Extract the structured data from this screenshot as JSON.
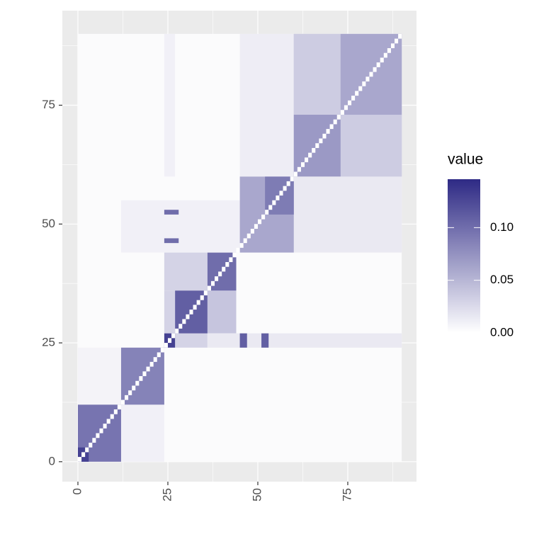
{
  "chart_data": {
    "type": "heatmap",
    "xlim": [
      -4.33,
      94.1
    ],
    "ylim": [
      -4.2,
      94.9
    ],
    "xticks": [
      0,
      25,
      50,
      75
    ],
    "yticks": [
      0,
      25,
      50,
      75
    ],
    "grid": true,
    "background": "#EBEBEB",
    "low_color": "#FFFFFF",
    "high_color": "#2E2A85",
    "color_lim": [
      0,
      0.146
    ],
    "legend_title": "value",
    "legend_position": "right",
    "legend_ticks": [
      {
        "value": 0,
        "label": "0.00"
      },
      {
        "value": 0.05,
        "label": "0.05"
      },
      {
        "value": 0.1,
        "label": "0.10"
      }
    ],
    "diagonal_value": 0,
    "diagonal_cells": 90,
    "tiles": [
      {
        "x": [
          0,
          90
        ],
        "y": [
          0,
          90
        ],
        "value": 0.003
      },
      {
        "x": [
          12,
          24
        ],
        "y": [
          0,
          12
        ],
        "value": 0.01
      },
      {
        "x": [
          0,
          12
        ],
        "y": [
          12,
          24
        ],
        "value": 0.008
      },
      {
        "x": [
          0,
          12
        ],
        "y": [
          0,
          12
        ],
        "value": 0.095
      },
      {
        "x": [
          0,
          3
        ],
        "y": [
          0,
          3
        ],
        "value": 0.13
      },
      {
        "x": [
          12,
          24
        ],
        "y": [
          12,
          24
        ],
        "value": 0.085
      },
      {
        "x": [
          24,
          36
        ],
        "y": [
          36,
          44
        ],
        "value": 0.03
      },
      {
        "x": [
          36,
          44
        ],
        "y": [
          27,
          36
        ],
        "value": 0.04
      },
      {
        "x": [
          24,
          27
        ],
        "y": [
          27,
          36
        ],
        "value": 0.03
      },
      {
        "x": [
          27,
          36
        ],
        "y": [
          24,
          27
        ],
        "value": 0.03
      },
      {
        "x": [
          36,
          90
        ],
        "y": [
          24,
          27
        ],
        "value": 0.015
      },
      {
        "x": [
          45,
          47
        ],
        "y": [
          24,
          27
        ],
        "value": 0.11
      },
      {
        "x": [
          51,
          53
        ],
        "y": [
          24,
          27
        ],
        "value": 0.11
      },
      {
        "x": [
          24,
          27
        ],
        "y": [
          24,
          27
        ],
        "value": 0.13
      },
      {
        "x": [
          27,
          36
        ],
        "y": [
          27,
          36
        ],
        "value": 0.11
      },
      {
        "x": [
          36,
          44
        ],
        "y": [
          36,
          44
        ],
        "value": 0.1
      },
      {
        "x": [
          12,
          45
        ],
        "y": [
          44,
          55
        ],
        "value": 0.01
      },
      {
        "x": [
          24,
          28
        ],
        "y": [
          46,
          47
        ],
        "value": 0.1
      },
      {
        "x": [
          24,
          28
        ],
        "y": [
          52,
          53
        ],
        "value": 0.1
      },
      {
        "x": [
          60,
          90
        ],
        "y": [
          44,
          60
        ],
        "value": 0.015
      },
      {
        "x": [
          45,
          60
        ],
        "y": [
          44,
          60
        ],
        "value": 0.06
      },
      {
        "x": [
          52,
          60
        ],
        "y": [
          52,
          60
        ],
        "value": 0.09
      },
      {
        "x": [
          45,
          60
        ],
        "y": [
          60,
          90
        ],
        "value": 0.012
      },
      {
        "x": [
          24,
          27
        ],
        "y": [
          60,
          90
        ],
        "value": 0.01
      },
      {
        "x": [
          60,
          90
        ],
        "y": [
          60,
          90
        ],
        "value": 0.04
      },
      {
        "x": [
          73,
          90
        ],
        "y": [
          60,
          73
        ],
        "value": 0.035
      },
      {
        "x": [
          60,
          73
        ],
        "y": [
          73,
          90
        ],
        "value": 0.035
      },
      {
        "x": [
          60,
          73
        ],
        "y": [
          60,
          73
        ],
        "value": 0.07
      },
      {
        "x": [
          73,
          90
        ],
        "y": [
          73,
          90
        ],
        "value": 0.06
      }
    ]
  }
}
